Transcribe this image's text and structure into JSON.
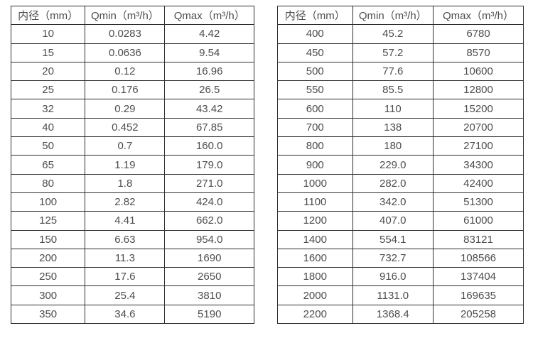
{
  "colors": {
    "background": "#ffffff",
    "text": "#4d4d4d",
    "border": "#2e2e2e"
  },
  "tables": [
    {
      "name": "flow-table-small-diameters",
      "headers": [
        "内径（mm）",
        "Qmin（m³/h）",
        "Qmax（m³/h）"
      ],
      "rows": [
        [
          "10",
          "0.0283",
          "4.42"
        ],
        [
          "15",
          "0.0636",
          "9.54"
        ],
        [
          "20",
          "0.12",
          "16.96"
        ],
        [
          "25",
          "0.176",
          "26.5"
        ],
        [
          "32",
          "0.29",
          "43.42"
        ],
        [
          "40",
          "0.452",
          "67.85"
        ],
        [
          "50",
          "0.7",
          "160.0"
        ],
        [
          "65",
          "1.19",
          "179.0"
        ],
        [
          "80",
          "1.8",
          "271.0"
        ],
        [
          "100",
          "2.82",
          "424.0"
        ],
        [
          "125",
          "4.41",
          "662.0"
        ],
        [
          "150",
          "6.63",
          "954.0"
        ],
        [
          "200",
          "11.3",
          "1690"
        ],
        [
          "250",
          "17.6",
          "2650"
        ],
        [
          "300",
          "25.4",
          "3810"
        ],
        [
          "350",
          "34.6",
          "5190"
        ]
      ]
    },
    {
      "name": "flow-table-large-diameters",
      "headers": [
        "内径（mm）",
        "Qmin（m³/h）",
        "Qmax（m³/h）"
      ],
      "rows": [
        [
          "400",
          "45.2",
          "6780"
        ],
        [
          "450",
          "57.2",
          "8570"
        ],
        [
          "500",
          "77.6",
          "10600"
        ],
        [
          "550",
          "85.5",
          "12800"
        ],
        [
          "600",
          "110",
          "15200"
        ],
        [
          "700",
          "138",
          "20700"
        ],
        [
          "800",
          "180",
          "27100"
        ],
        [
          "900",
          "229.0",
          "34300"
        ],
        [
          "1000",
          "282.0",
          "42400"
        ],
        [
          "1100",
          "342.0",
          "51300"
        ],
        [
          "1200",
          "407.0",
          "61000"
        ],
        [
          "1400",
          "554.1",
          "83121"
        ],
        [
          "1600",
          "732.7",
          "108566"
        ],
        [
          "1800",
          "916.0",
          "137404"
        ],
        [
          "2000",
          "1131.0",
          "169635"
        ],
        [
          "2200",
          "1368.4",
          "205258"
        ]
      ]
    }
  ]
}
